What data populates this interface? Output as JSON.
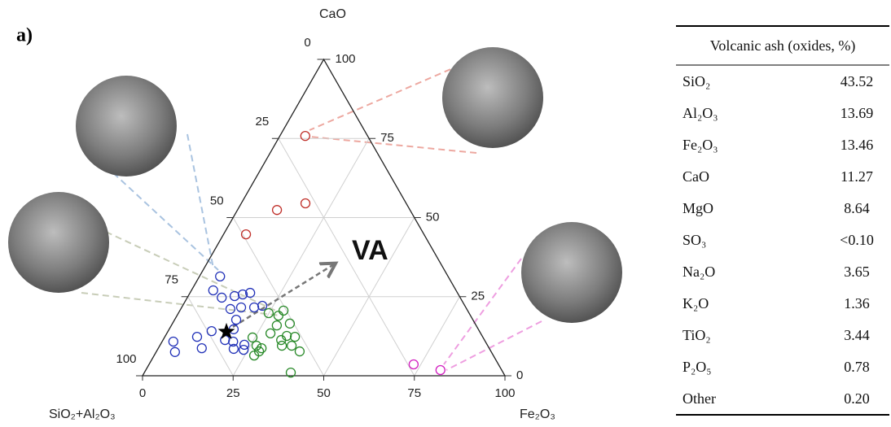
{
  "chart_data": {
    "type": "ternary",
    "panel_label": "a)",
    "axes": {
      "top": "CaO",
      "left": "SiO₂+Al₂O₃",
      "right": "Fe₂O₃"
    },
    "ticks": [
      0,
      25,
      50,
      75,
      100
    ],
    "annotation": "VA",
    "grid": true,
    "series": [
      {
        "color": "#c0302a",
        "fe2o3": [
          7.0,
          17.7,
          10.9,
          6.2
        ],
        "cao": [
          75.8,
          54.5,
          52.4,
          44.7
        ]
      },
      {
        "color": "#2232b8",
        "fe2o3": [
          5.7,
          6.0,
          9.5,
          12.8,
          14.8,
          16.6,
          16.4,
          20.0,
          22.0,
          13.7,
          17.0,
          17.8,
          12.0,
          17.1,
          8.9,
          12.0,
          3.1,
          5.2,
          20.9,
          23.2,
          23.8,
          19.6
        ],
        "cao": [
          31.4,
          27.0,
          24.7,
          25.2,
          25.7,
          26.2,
          21.6,
          21.6,
          22.1,
          21.1,
          17.7,
          14.7,
          14.1,
          11.3,
          12.3,
          8.7,
          10.8,
          7.5,
          8.5,
          9.8,
          8.2,
          10.8
        ]
      },
      {
        "color": "#2a8a2a",
        "fe2o3": [
          24.9,
          28.0,
          28.6,
          32.4,
          29.1,
          33.5,
          35.9,
          28.6,
          26.7,
          28.3,
          28.5,
          27.6,
          33.7,
          36.4,
          39.5,
          32.6,
          40.4,
          24.3
        ],
        "cao": [
          19.8,
          19.0,
          20.6,
          16.5,
          15.9,
          12.6,
          12.3,
          13.4,
          9.5,
          7.7,
          8.7,
          6.4,
          9.5,
          9.5,
          7.7,
          11.3,
          1.0,
          12.1
        ]
      },
      {
        "color": "#d21fc0",
        "fe2o3": [
          73.0,
          81.3
        ],
        "cao": [
          3.6,
          1.8
        ]
      }
    ],
    "marker": {
      "fe2o3": 16.2,
      "cao": 13.9,
      "color": "#000000"
    }
  },
  "table": {
    "header": "Volcanic ash (oxides, %)",
    "rows": [
      [
        "SiO₂",
        "43.52"
      ],
      [
        "Al₂O₃",
        "13.69"
      ],
      [
        "Fe₂O₃",
        "13.46"
      ],
      [
        "CaO",
        "11.27"
      ],
      [
        "MgO",
        "8.64"
      ],
      [
        "SO₃",
        "<0.10"
      ],
      [
        "Na₂O",
        "3.65"
      ],
      [
        "K₂O",
        "1.36"
      ],
      [
        "TiO₂",
        "3.44"
      ],
      [
        "P₂O₅",
        "0.78"
      ],
      [
        "Other",
        "0.20"
      ]
    ]
  }
}
